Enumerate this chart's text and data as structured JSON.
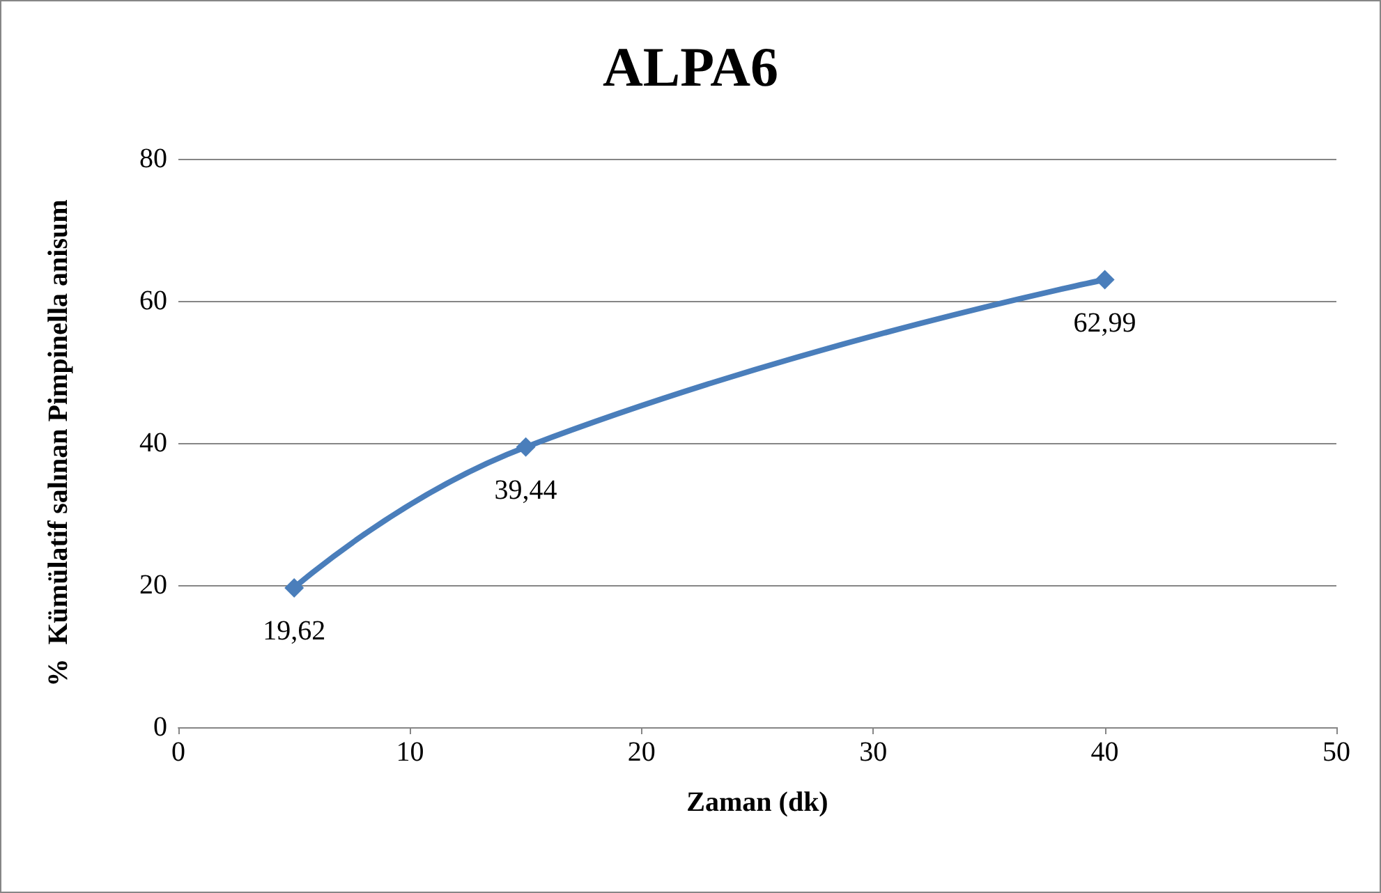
{
  "chart_data": {
    "type": "line",
    "title": "ALPA6",
    "xlabel": "Zaman (dk)",
    "ylabel": "%  Kümülatif salınan Pimpinella anisum",
    "x": [
      5,
      15,
      40
    ],
    "series": [
      {
        "color": "#4a7ebb",
        "values": [
          19.62,
          39.44,
          62.99
        ],
        "value_labels": [
          "19,62",
          "39,44",
          "62,99"
        ]
      }
    ],
    "xlim": [
      0,
      50
    ],
    "xticks": [
      0,
      10,
      20,
      30,
      40,
      50
    ],
    "ylim": [
      0,
      80
    ],
    "yticks": [
      0,
      20,
      40,
      60,
      80
    ],
    "grid": "y",
    "marker": "diamond",
    "line_style": "solid"
  }
}
